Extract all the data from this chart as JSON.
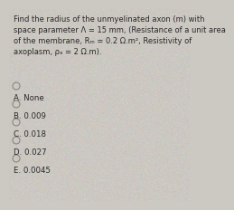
{
  "question_lines": [
    "Find the radius of the unmyelinated axon (m) with",
    "space parameter Λ = 15 mm, (Resistance of a unit area",
    "of the membrane, Rₘ = 0.2 Ω.m², Resistivity of",
    "axoplasm, ρₐ = 2 Ω.m)."
  ],
  "options": [
    "A. None",
    "B. 0.009",
    "C. 0.018",
    "D. 0.027",
    "E. 0.0045"
  ],
  "bg_color": "#ccc8c2",
  "text_color": "#2a2a2a",
  "question_fontsize": 6.0,
  "option_fontsize": 6.2,
  "circle_color": "#888880"
}
